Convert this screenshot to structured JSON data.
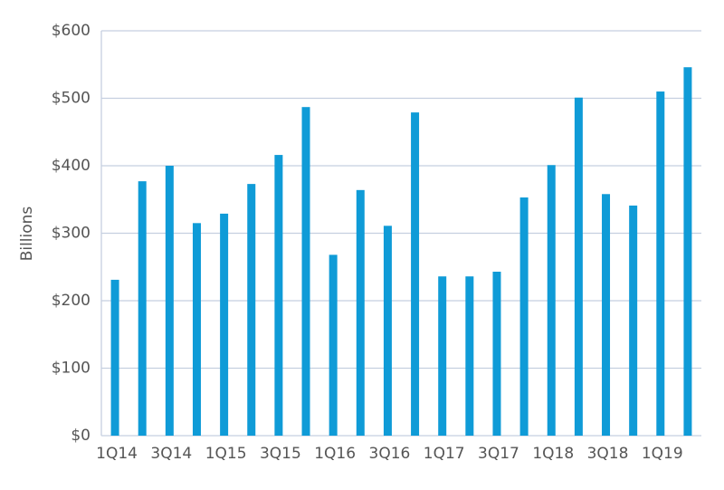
{
  "chart_data": {
    "type": "bar",
    "y_label": "Billions",
    "categories": [
      "1Q14",
      null,
      "3Q14",
      null,
      "1Q15",
      null,
      "3Q15",
      null,
      "1Q16",
      null,
      "3Q16",
      null,
      "1Q17",
      null,
      "3Q17",
      null,
      "1Q18",
      null,
      "3Q18",
      null,
      "1Q19",
      null
    ],
    "values": [
      231,
      377,
      400,
      315,
      329,
      373,
      416,
      487,
      268,
      364,
      311,
      479,
      236,
      236,
      243,
      353,
      401,
      501,
      358,
      341,
      510,
      546
    ],
    "color": "#0f9bd7",
    "ylim": [
      0,
      600
    ],
    "yticks": [
      {
        "value": 0,
        "label": "$0"
      },
      {
        "value": 100,
        "label": "$100"
      },
      {
        "value": 200,
        "label": "$200"
      },
      {
        "value": 300,
        "label": "$300"
      },
      {
        "value": 400,
        "label": "$400"
      },
      {
        "value": 500,
        "label": "$500"
      },
      {
        "value": 600,
        "label": "$600"
      }
    ],
    "grid": true
  }
}
